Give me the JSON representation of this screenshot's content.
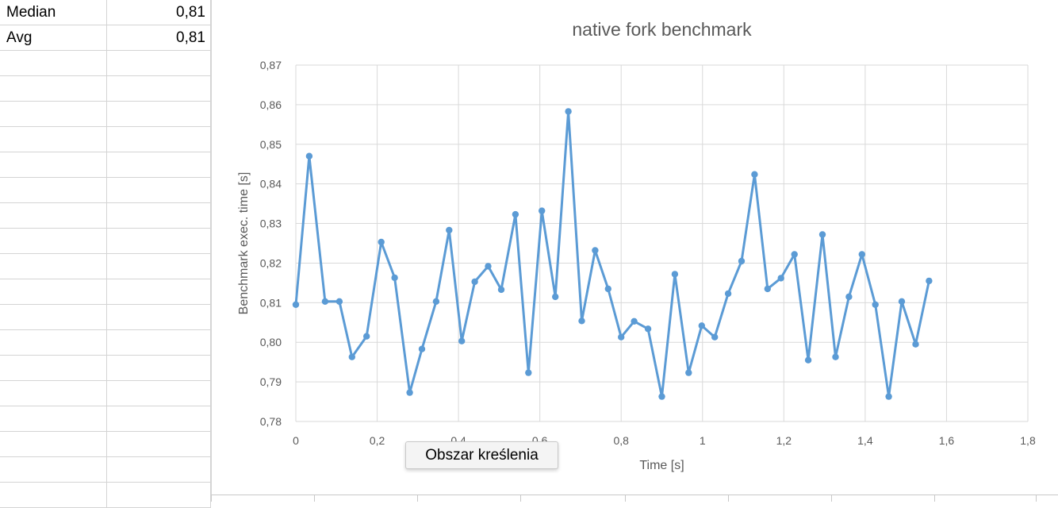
{
  "sheet": {
    "rows": [
      {
        "label": "Median",
        "value": "0,81"
      },
      {
        "label": "Avg",
        "value": "0,81"
      }
    ]
  },
  "tooltip": "Obszar kreślenia",
  "colors": {
    "series": "#5b9bd5",
    "grid": "#d9d9d9",
    "text": "#595959"
  },
  "chart_data": {
    "type": "scatter",
    "title": "native fork benchmark",
    "xlabel": "Time [s]",
    "ylabel": "Benchmark exec. time [s]",
    "xlim": [
      0,
      1.8
    ],
    "ylim": [
      0.78,
      0.87
    ],
    "x_ticks": [
      "0",
      "0,2",
      "0,4",
      "0,6",
      "0,8",
      "1",
      "1,2",
      "1,4",
      "1,6",
      "1,8"
    ],
    "y_ticks": [
      "0,78",
      "0,79",
      "0,80",
      "0,81",
      "0,82",
      "0,83",
      "0,84",
      "0,85",
      "0,86",
      "0,87"
    ],
    "grid": true,
    "legend": "none",
    "series": [
      {
        "x": [
          0.0,
          0.033,
          0.072,
          0.107,
          0.138,
          0.174,
          0.21,
          0.243,
          0.28,
          0.31,
          0.345,
          0.377,
          0.408,
          0.44,
          0.473,
          0.505,
          0.54,
          0.572,
          0.605,
          0.638,
          0.67,
          0.703,
          0.736,
          0.768,
          0.8,
          0.832,
          0.866,
          0.9,
          0.932,
          0.966,
          0.998,
          1.03,
          1.063,
          1.096,
          1.128,
          1.16,
          1.193,
          1.226,
          1.26,
          1.295,
          1.327,
          1.36,
          1.392,
          1.425,
          1.458,
          1.49,
          1.524,
          1.557
        ],
        "y": [
          0.8095,
          0.847,
          0.8103,
          0.8103,
          0.7963,
          0.8015,
          0.8253,
          0.8163,
          0.7873,
          0.7983,
          0.8103,
          0.8283,
          0.8003,
          0.8153,
          0.8192,
          0.8133,
          0.8323,
          0.7923,
          0.8332,
          0.8115,
          0.8583,
          0.8054,
          0.8232,
          0.8135,
          0.8013,
          0.8053,
          0.8034,
          0.7863,
          0.8172,
          0.7923,
          0.8042,
          0.8013,
          0.8123,
          0.8205,
          0.8424,
          0.8135,
          0.8162,
          0.8222,
          0.7955,
          0.8272,
          0.7963,
          0.8115,
          0.8222,
          0.8095,
          0.7863,
          0.8103,
          0.7995,
          0.8155
        ]
      }
    ]
  }
}
